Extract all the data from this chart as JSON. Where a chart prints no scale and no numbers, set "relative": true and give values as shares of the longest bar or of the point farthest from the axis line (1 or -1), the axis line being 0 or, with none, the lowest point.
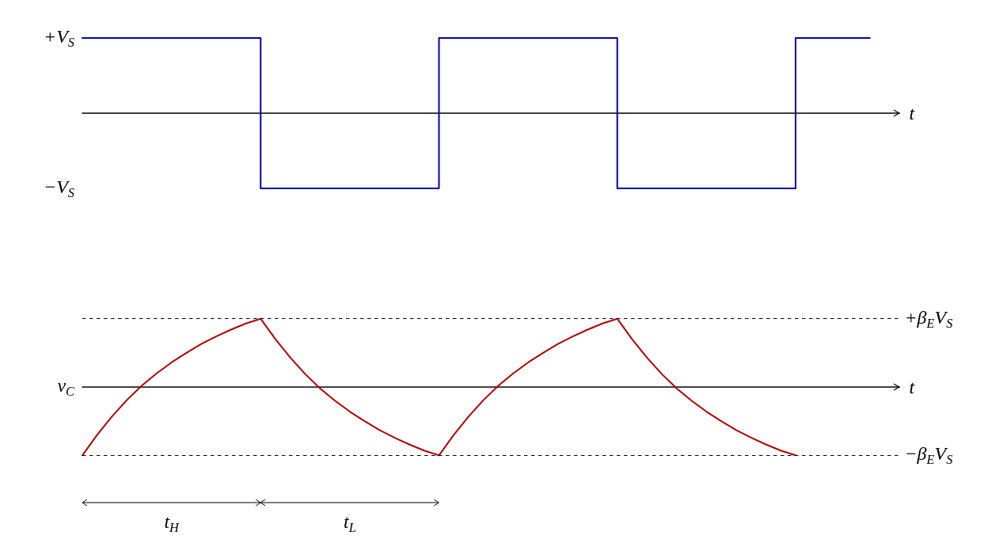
{
  "chart_data": [
    {
      "type": "step",
      "xlabel": "t",
      "relative": true,
      "color": "#0000b3",
      "categories": [
        null,
        null,
        null,
        null,
        null,
        null,
        null,
        null,
        null,
        null,
        null,
        null,
        null,
        null,
        null,
        null,
        null,
        null,
        null,
        null,
        null,
        null,
        null,
        null,
        null,
        null,
        null,
        null,
        null,
        null,
        null,
        null,
        null,
        null,
        null,
        null,
        null,
        null,
        null,
        null,
        null,
        null,
        null,
        null,
        null,
        null,
        null,
        null,
        null,
        null,
        null,
        null,
        null,
        null,
        null,
        null
      ],
      "values": [
        1,
        1,
        1,
        1,
        1,
        1,
        1,
        1,
        1,
        1,
        1,
        1,
        1,
        -1,
        -1,
        -1,
        -1,
        -1,
        -1,
        -1,
        -1,
        -1,
        -1,
        -1,
        -1,
        1,
        1,
        1,
        1,
        1,
        1,
        1,
        1,
        1,
        1,
        1,
        1,
        -1,
        -1,
        -1,
        -1,
        -1,
        -1,
        -1,
        -1,
        -1,
        -1,
        -1,
        -1,
        1,
        1,
        1,
        1,
        1,
        null,
        null
      ],
      "annotations": [
        "+V$_{S}$",
        "−V$_{S}$"
      ]
    },
    {
      "type": "line",
      "xlabel": "t",
      "ylabel": "v$_{C}$",
      "relative": true,
      "color": "#b30000",
      "categories": [
        null,
        null,
        null,
        null,
        null,
        null,
        null,
        null,
        null,
        null,
        null,
        null,
        null,
        null,
        null,
        null,
        null,
        null,
        null,
        null,
        null,
        null,
        null,
        null,
        null,
        null,
        null,
        null,
        null,
        null,
        null,
        null,
        null,
        null,
        null,
        null,
        null,
        null,
        null,
        null,
        null,
        null,
        null,
        null,
        null,
        null,
        null,
        null,
        null,
        null,
        null,
        null,
        null,
        null,
        null,
        null
      ],
      "values": [
        -1,
        -0.7,
        -0.43,
        -0.19,
        0.02,
        0.2,
        0.36,
        0.5,
        0.63,
        0.74,
        0.84,
        0.93,
        1,
        0.7,
        0.43,
        0.19,
        -0.02,
        -0.2,
        -0.36,
        -0.5,
        -0.63,
        -0.74,
        -0.84,
        -0.93,
        -1,
        -0.7,
        -0.43,
        -0.19,
        0.02,
        0.2,
        0.36,
        0.5,
        0.63,
        0.74,
        0.84,
        0.93,
        1,
        0.7,
        0.43,
        0.19,
        -0.02,
        -0.2,
        -0.36,
        -0.5,
        -0.63,
        -0.74,
        -0.84,
        -0.93,
        -1,
        null,
        null,
        null,
        null,
        null,
        null,
        null
      ],
      "ref_lines": [
        {
          "axis": "y",
          "value": 1,
          "label": "+β$_{E}$V$_{S}$",
          "color": "#000000",
          "line_style": "dashed"
        },
        {
          "axis": "y",
          "value": -1,
          "label": "−β$_{E}$V$_{S}$",
          "color": "#000000",
          "line_style": "dashed"
        }
      ],
      "annotations": [
        "t$_{H}$",
        "t$_{L}$"
      ]
    }
  ]
}
